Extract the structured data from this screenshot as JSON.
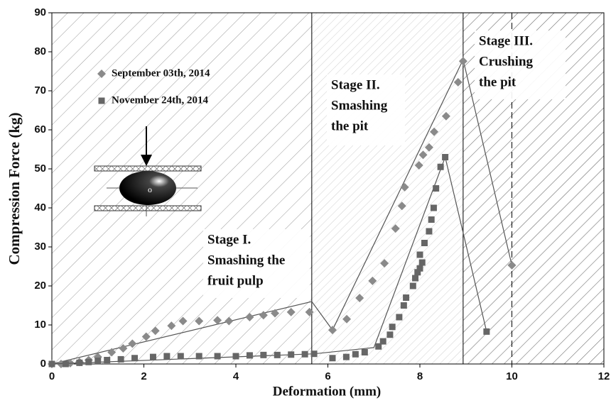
{
  "chart_data": {
    "type": "scatter",
    "x_label": "Deformation (mm)",
    "y_label": "Compression Force (kg)",
    "xlim": [
      0,
      12
    ],
    "ylim": [
      0,
      90
    ],
    "xticks": [
      0,
      2,
      4,
      6,
      8,
      10,
      12
    ],
    "yticks": [
      0,
      10,
      20,
      30,
      40,
      50,
      60,
      70,
      80,
      90
    ],
    "stages": [
      {
        "lines": [
          "Stage I.",
          "Smashing the",
          "fruit pulp"
        ],
        "start": 0,
        "end": 5.65
      },
      {
        "lines": [
          "Stage II.",
          "Smashing",
          "the pit"
        ],
        "start": 5.65,
        "end": 8.94
      },
      {
        "lines": [
          "Stage III.",
          "Crushing",
          "the pit"
        ],
        "start": 8.94,
        "end": 12
      }
    ],
    "dashed_x": 10,
    "inset_label": "o",
    "series": [
      {
        "name": "September 03th, 2014",
        "color": "#8a8a8a",
        "marker": "diamond",
        "x": [
          0,
          0.2,
          0.4,
          0.6,
          0.8,
          1.0,
          1.3,
          1.55,
          1.75,
          2.05,
          2.25,
          2.6,
          2.85,
          3.2,
          3.6,
          3.85,
          4.3,
          4.6,
          4.85,
          5.2,
          5.6,
          6.1,
          6.41,
          6.69,
          6.97,
          7.23,
          7.47,
          7.61,
          7.67,
          7.98,
          8.07,
          8.2,
          8.31,
          8.57,
          8.83,
          8.94,
          10.0
        ],
        "values": [
          0,
          0,
          0.2,
          0.5,
          1,
          1.8,
          3,
          4,
          5.2,
          7,
          8.5,
          9.8,
          11,
          11,
          11.2,
          11,
          12,
          12.5,
          13,
          13.3,
          13.3,
          8.7,
          11.5,
          16.9,
          21.3,
          25.8,
          34.7,
          40.5,
          45.3,
          50.9,
          53.6,
          55.5,
          59.5,
          63.5,
          72.2,
          77.6,
          25.3
        ],
        "line_x": [
          0,
          5.65,
          6.1,
          8.94,
          10.0
        ],
        "line_y": [
          0,
          16,
          8.7,
          78,
          25.3
        ]
      },
      {
        "name": "November 24th, 2014",
        "color": "#666666",
        "marker": "square",
        "x": [
          0,
          0.3,
          0.6,
          0.8,
          1.0,
          1.2,
          1.5,
          1.8,
          2.2,
          2.5,
          2.8,
          3.2,
          3.6,
          4.0,
          4.3,
          4.6,
          4.9,
          5.2,
          5.5,
          5.7,
          6.1,
          6.4,
          6.6,
          6.8,
          7.1,
          7.2,
          7.35,
          7.4,
          7.55,
          7.65,
          7.7,
          7.85,
          7.9,
          7.95,
          8.0,
          8.05,
          8.0,
          8.1,
          8.2,
          8.25,
          8.3,
          8.35,
          8.45,
          8.55,
          9.45
        ],
        "values": [
          0,
          0,
          0.3,
          0.5,
          0.8,
          1,
          1.2,
          1.5,
          1.8,
          2,
          2,
          2,
          2,
          2,
          2.2,
          2.3,
          2.3,
          2.4,
          2.5,
          2.6,
          1.5,
          1.8,
          2.5,
          3,
          4.5,
          5.8,
          7.5,
          9.5,
          12,
          15,
          17,
          20,
          22,
          23.5,
          24.5,
          26,
          28,
          31,
          34,
          37,
          40,
          45,
          50.5,
          53,
          8.3
        ],
        "line_x": [
          0,
          5.7,
          7.0,
          8.55,
          9.45
        ],
        "line_y": [
          0,
          2.6,
          4.2,
          53,
          8.3
        ]
      }
    ]
  }
}
